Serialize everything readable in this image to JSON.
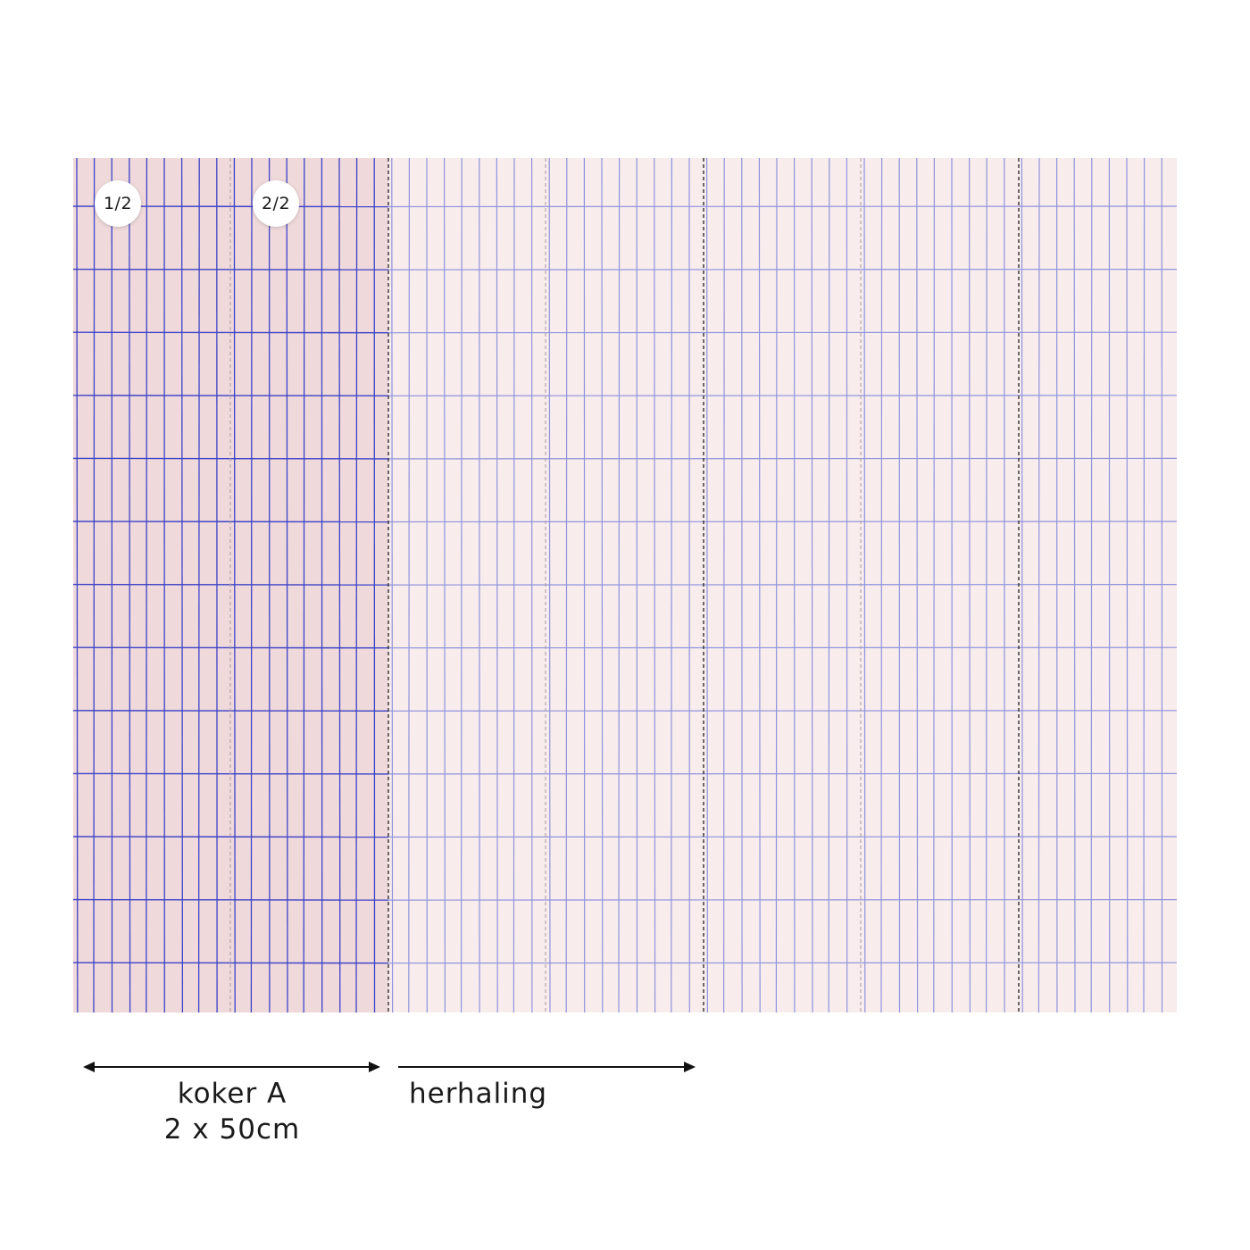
{
  "colors": {
    "highlight_bg": "#efd9db",
    "repeat_bg": "#f8ecec",
    "grid_line_highlight": "#3d43c8",
    "grid_line_repeat": "#8f93de",
    "seam_line": "#222222",
    "sub_seam_line": "#b0a0a8"
  },
  "panel_labels": [
    "1/2",
    "2/2"
  ],
  "captions": {
    "roll_name": "koker A",
    "roll_size": "2 x 50cm",
    "repeat": "herhaling"
  },
  "icons": {
    "roll_arrow": "double-arrow-icon",
    "repeat_arrow": "right-arrow-icon"
  }
}
